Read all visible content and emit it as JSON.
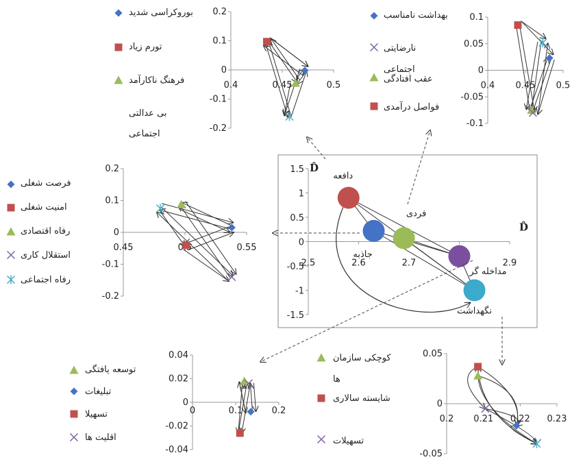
{
  "colors": {
    "blue": "#4472C4",
    "red": "#C0504D",
    "green": "#9BBB59",
    "purple": "#8064A2",
    "cyan": "#4BACC6",
    "purple_bubble": "#7B4FA0",
    "teal_bubble": "#3BAACB"
  },
  "center_chart": {
    "x_axis_label": "D̂",
    "y_axis_label": "D̂",
    "x_ticks": [
      "2.5",
      "2.6",
      "2.7",
      "2.8",
      "2.9"
    ],
    "y_ticks": [
      "1.5",
      "1",
      "0.5",
      "0",
      "-0.5",
      "-1",
      "-1.5"
    ],
    "xlim": [
      2.5,
      2.9
    ],
    "ylim": [
      -1.5,
      1.5
    ],
    "bubbles": [
      {
        "label": "دافعه",
        "x": 2.58,
        "y": 0.9,
        "color": "#C0504D"
      },
      {
        "label": "جاذبه",
        "x": 2.63,
        "y": 0.22,
        "color": "#4472C4"
      },
      {
        "label": "فردی",
        "x": 2.69,
        "y": 0.07,
        "color": "#9BBB59"
      },
      {
        "label": "مداخله گر",
        "x": 2.8,
        "y": -0.3,
        "color": "#7B4FA0"
      },
      {
        "label": "نگهداشت",
        "x": 2.83,
        "y": -1.0,
        "color": "#3BAACB"
      }
    ]
  },
  "panels": {
    "top_left": {
      "x_ticks": [
        "0.4",
        "0.45",
        "0.5"
      ],
      "y_ticks": [
        "0.2",
        "0.1",
        "0",
        "-0.1",
        "-0.2"
      ],
      "xlim": [
        0.4,
        0.5
      ],
      "ylim": [
        -0.2,
        0.2
      ],
      "legend": [
        "بوروکراسی شدید",
        "تورم زیاد",
        "فرهنگ ناکارآمد",
        "بی عدالتی",
        "اجتماعی"
      ],
      "points": [
        {
          "name": "بوروکراسی شدید",
          "x": 0.472,
          "y": -0.002,
          "shape": "diamond"
        },
        {
          "name": "تورم زیاد",
          "x": 0.435,
          "y": 0.097,
          "shape": "square"
        },
        {
          "name": "فرهنگ ناکارآمد",
          "x": 0.463,
          "y": -0.045,
          "shape": "triangle"
        },
        {
          "name": "بی عدالتی اجتماعی",
          "x": 0.457,
          "y": -0.16,
          "shape": "star"
        }
      ]
    },
    "top_right": {
      "x_ticks": [
        "0.4",
        "0.45",
        "0.5"
      ],
      "y_ticks": [
        "0.1",
        "0.05",
        "0",
        "-0.05",
        "-0.1"
      ],
      "xlim": [
        0.4,
        0.5
      ],
      "ylim": [
        -0.1,
        0.1
      ],
      "legend": [
        "بهداشت نامناسب",
        "نارضایتی",
        "اجتماعی",
        "عقب افتادگی",
        "فواصل درآمدی"
      ],
      "points": [
        {
          "name": "بهداشت نامناسب",
          "x": 0.482,
          "y": 0.023,
          "shape": "diamond"
        },
        {
          "name": "فواصل درآمدی",
          "x": 0.44,
          "y": 0.085,
          "shape": "square"
        },
        {
          "name": "عقب افتادگی",
          "x": 0.458,
          "y": -0.075,
          "shape": "triangle"
        },
        {
          "name": "نارضایتی اجتماعی",
          "x": 0.46,
          "y": -0.08,
          "shape": "x"
        },
        {
          "name": "",
          "x": 0.473,
          "y": 0.052,
          "shape": "star"
        }
      ]
    },
    "middle_left": {
      "x_ticks": [
        "0.45",
        "0.5",
        "0.55"
      ],
      "y_ticks": [
        "0.2",
        "0.1",
        "0",
        "-0.1",
        "-0.2"
      ],
      "xlim": [
        0.45,
        0.55
      ],
      "ylim": [
        -0.2,
        0.2
      ],
      "legend": [
        "فرصت شغلی",
        "امنیت شغلی",
        "رفاه اقتصادی",
        "استقلال کاری",
        "رفاه اجتماعی"
      ],
      "points": [
        {
          "name": "فرصت شغلی",
          "x": 0.538,
          "y": 0.015,
          "shape": "diamond"
        },
        {
          "name": "امنیت شغلی",
          "x": 0.501,
          "y": -0.04,
          "shape": "square"
        },
        {
          "name": "رفاه اقتصادی",
          "x": 0.497,
          "y": 0.088,
          "shape": "triangle"
        },
        {
          "name": "استقلال کاری",
          "x": 0.538,
          "y": -0.14,
          "shape": "x"
        },
        {
          "name": "رفاه اجتماعی",
          "x": 0.48,
          "y": 0.075,
          "shape": "star"
        }
      ]
    },
    "bottom_left": {
      "x_ticks": [
        "0",
        "0.1",
        "0.2"
      ],
      "y_ticks": [
        "0.04",
        "0.02",
        "0",
        "-0.02",
        "-0.04"
      ],
      "xlim": [
        0,
        0.2
      ],
      "ylim": [
        -0.04,
        0.04
      ],
      "legend": [
        "توسعه یافتگی",
        "تبلیغات",
        "تسهیلا",
        "اقلیت ها"
      ],
      "points": [
        {
          "name": "توسعه یافتگی",
          "x": 0.12,
          "y": 0.018,
          "shape": "triangle"
        },
        {
          "name": "تبلیغات",
          "x": 0.135,
          "y": -0.008,
          "shape": "diamond"
        },
        {
          "name": "تسهیلا",
          "x": 0.11,
          "y": -0.026,
          "shape": "square"
        },
        {
          "name": "اقلیت ها",
          "x": 0.13,
          "y": 0.016,
          "shape": "x"
        }
      ]
    },
    "bottom_right": {
      "x_ticks": [
        "0.2",
        "0.21",
        "0.22",
        "0.23"
      ],
      "y_ticks": [
        "0.05",
        "0",
        "-0.05"
      ],
      "xlim": [
        0.2,
        0.23
      ],
      "ylim": [
        -0.05,
        0.05
      ],
      "legend": [
        "کوچکی سازمان",
        "ها",
        "شایسته سالاری",
        "تسهیلات"
      ],
      "points": [
        {
          "name": "شایسته سالاری",
          "x": 0.2085,
          "y": 0.037,
          "shape": "square"
        },
        {
          "name": "کوچکی سازمان ها",
          "x": 0.2085,
          "y": 0.028,
          "shape": "triangle"
        },
        {
          "name": "تسهیلات",
          "x": 0.2105,
          "y": -0.005,
          "shape": "x"
        },
        {
          "name": "",
          "x": 0.219,
          "y": -0.022,
          "shape": "diamond"
        },
        {
          "name": "",
          "x": 0.2245,
          "y": -0.04,
          "shape": "star"
        }
      ]
    }
  }
}
